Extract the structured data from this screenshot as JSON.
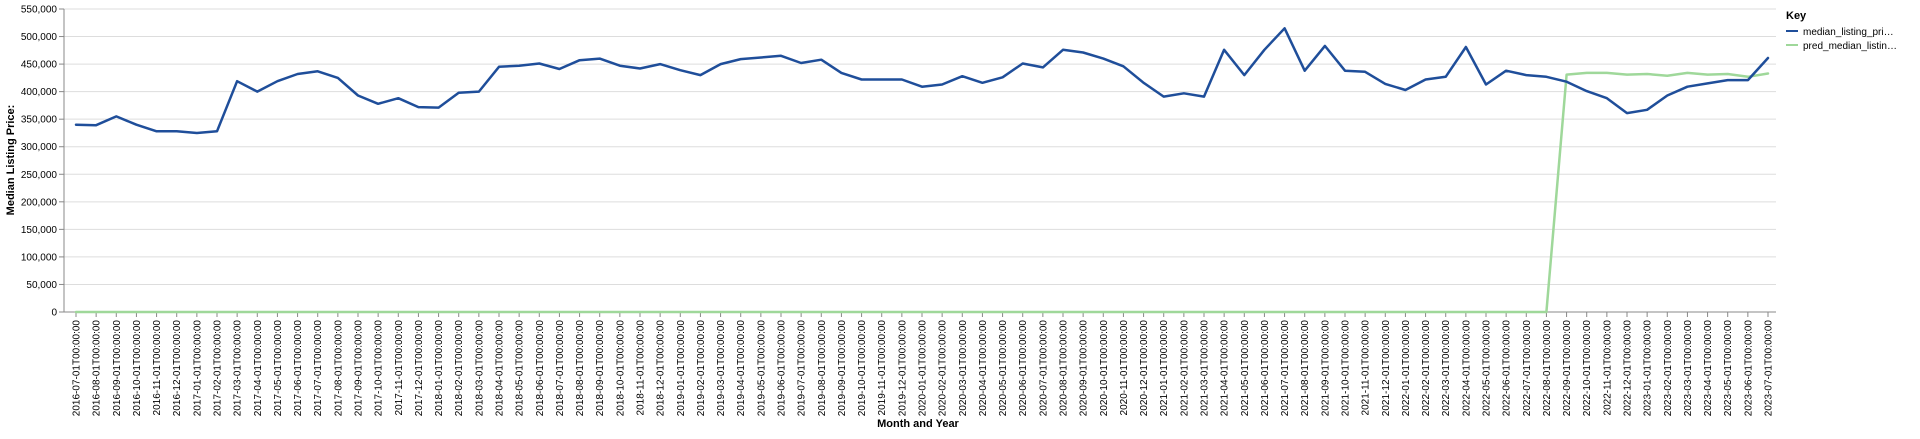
{
  "chart_data": {
    "type": "line",
    "xlabel": "Month and Year",
    "ylabel": "Median Listing Price:",
    "ylim": [
      0,
      550000
    ],
    "yticks": [
      0,
      50000,
      100000,
      150000,
      200000,
      250000,
      300000,
      350000,
      400000,
      450000,
      500000,
      550000
    ],
    "ytick_labels": [
      "0",
      "50,000",
      "100,000",
      "150,000",
      "200,000",
      "250,000",
      "300,000",
      "350,000",
      "400,000",
      "450,000",
      "500,000",
      "550,000"
    ],
    "grid": true,
    "legend_position": "top-right",
    "legend": {
      "title": "Key",
      "entries": [
        "median_listing_pri…",
        "pred_median_listin…"
      ]
    },
    "x": [
      "2016-07-01T00:00:00",
      "2016-08-01T00:00:00",
      "2016-09-01T00:00:00",
      "2016-10-01T00:00:00",
      "2016-11-01T00:00:00",
      "2016-12-01T00:00:00",
      "2017-01-01T00:00:00",
      "2017-02-01T00:00:00",
      "2017-03-01T00:00:00",
      "2017-04-01T00:00:00",
      "2017-05-01T00:00:00",
      "2017-06-01T00:00:00",
      "2017-07-01T00:00:00",
      "2017-08-01T00:00:00",
      "2017-09-01T00:00:00",
      "2017-10-01T00:00:00",
      "2017-11-01T00:00:00",
      "2017-12-01T00:00:00",
      "2018-01-01T00:00:00",
      "2018-02-01T00:00:00",
      "2018-03-01T00:00:00",
      "2018-04-01T00:00:00",
      "2018-05-01T00:00:00",
      "2018-06-01T00:00:00",
      "2018-07-01T00:00:00",
      "2018-08-01T00:00:00",
      "2018-09-01T00:00:00",
      "2018-10-01T00:00:00",
      "2018-11-01T00:00:00",
      "2018-12-01T00:00:00",
      "2019-01-01T00:00:00",
      "2019-02-01T00:00:00",
      "2019-03-01T00:00:00",
      "2019-04-01T00:00:00",
      "2019-05-01T00:00:00",
      "2019-06-01T00:00:00",
      "2019-07-01T00:00:00",
      "2019-08-01T00:00:00",
      "2019-09-01T00:00:00",
      "2019-10-01T00:00:00",
      "2019-11-01T00:00:00",
      "2019-12-01T00:00:00",
      "2020-01-01T00:00:00",
      "2020-02-01T00:00:00",
      "2020-03-01T00:00:00",
      "2020-04-01T00:00:00",
      "2020-05-01T00:00:00",
      "2020-06-01T00:00:00",
      "2020-07-01T00:00:00",
      "2020-08-01T00:00:00",
      "2020-09-01T00:00:00",
      "2020-10-01T00:00:00",
      "2020-11-01T00:00:00",
      "2020-12-01T00:00:00",
      "2021-01-01T00:00:00",
      "2021-02-01T00:00:00",
      "2021-03-01T00:00:00",
      "2021-04-01T00:00:00",
      "2021-05-01T00:00:00",
      "2021-06-01T00:00:00",
      "2021-07-01T00:00:00",
      "2021-08-01T00:00:00",
      "2021-09-01T00:00:00",
      "2021-10-01T00:00:00",
      "2021-11-01T00:00:00",
      "2021-12-01T00:00:00",
      "2022-01-01T00:00:00",
      "2022-02-01T00:00:00",
      "2022-03-01T00:00:00",
      "2022-04-01T00:00:00",
      "2022-05-01T00:00:00",
      "2022-06-01T00:00:00",
      "2022-07-01T00:00:00",
      "2022-08-01T00:00:00",
      "2022-09-01T00:00:00",
      "2022-10-01T00:00:00",
      "2022-11-01T00:00:00",
      "2022-12-01T00:00:00",
      "2023-01-01T00:00:00",
      "2023-02-01T00:00:00",
      "2023-03-01T00:00:00",
      "2023-04-01T00:00:00",
      "2023-05-01T00:00:00",
      "2023-06-01T00:00:00",
      "2023-07-01T00:00:00"
    ],
    "series": [
      {
        "name": "median_listing_pri…",
        "color": "#1f4e9a",
        "values": [
          340000,
          339000,
          355000,
          340000,
          328000,
          328000,
          325000,
          328000,
          419000,
          400000,
          419000,
          432000,
          437000,
          425000,
          393000,
          378000,
          388000,
          372000,
          371000,
          398000,
          400000,
          445000,
          447000,
          451000,
          441000,
          457000,
          460000,
          447000,
          442000,
          450000,
          439000,
          430000,
          450000,
          459000,
          462000,
          465000,
          452000,
          458000,
          434000,
          422000,
          422000,
          422000,
          409000,
          413000,
          428000,
          416000,
          426000,
          451000,
          444000,
          476000,
          471000,
          460000,
          446000,
          416000,
          391000,
          397000,
          391000,
          476000,
          430000,
          476000,
          515000,
          438000,
          483000,
          438000,
          436000,
          414000,
          403000,
          422000,
          427000,
          481000,
          413000,
          438000,
          430000,
          427000,
          418000,
          401000,
          388000,
          361000,
          367000,
          393000,
          409000,
          415000,
          421000,
          421000,
          461000
        ]
      },
      {
        "name": "pred_median_listin…",
        "color": "#9fd89a",
        "values": [
          0,
          0,
          0,
          0,
          0,
          0,
          0,
          0,
          0,
          0,
          0,
          0,
          0,
          0,
          0,
          0,
          0,
          0,
          0,
          0,
          0,
          0,
          0,
          0,
          0,
          0,
          0,
          0,
          0,
          0,
          0,
          0,
          0,
          0,
          0,
          0,
          0,
          0,
          0,
          0,
          0,
          0,
          0,
          0,
          0,
          0,
          0,
          0,
          0,
          0,
          0,
          0,
          0,
          0,
          0,
          0,
          0,
          0,
          0,
          0,
          0,
          0,
          0,
          0,
          0,
          0,
          0,
          0,
          0,
          0,
          0,
          0,
          0,
          0,
          431000,
          434000,
          434000,
          431000,
          432000,
          429000,
          434000,
          431000,
          432000,
          427000,
          433000
        ]
      }
    ]
  }
}
